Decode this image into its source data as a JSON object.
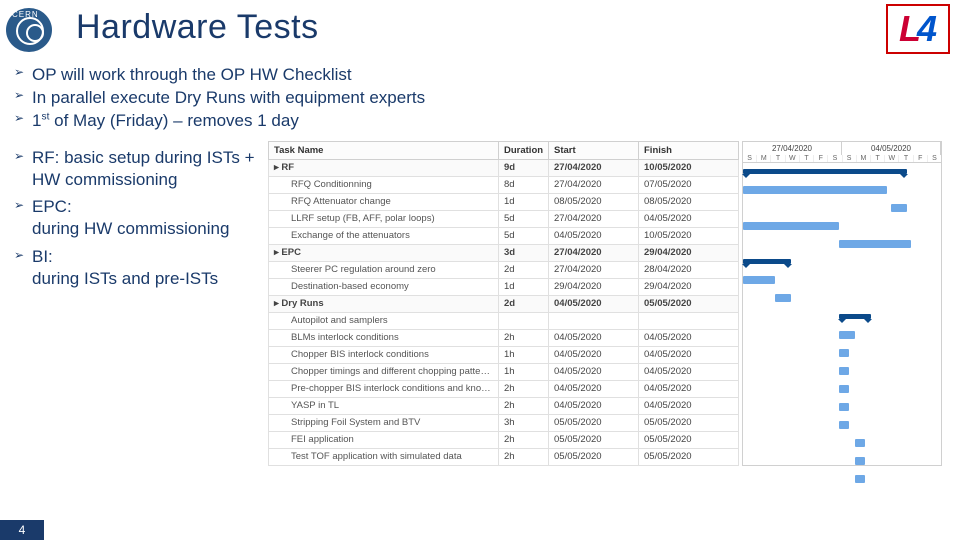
{
  "header": {
    "title": "Hardware Tests",
    "cern_label": "CERN",
    "logo_L": "L",
    "logo_4": "4"
  },
  "top_bullets": [
    "OP will work through the OP HW Checklist",
    "In parallel execute Dry Runs with equipment experts",
    "1st of May (Friday) – removes 1 day"
  ],
  "left_bullets": [
    "RF: basic setup during ISTs + HW commissioning",
    "EPC: \nduring HW commissioning",
    "BI: \nduring ISTs and pre-ISTs"
  ],
  "table": {
    "columns": [
      "Task Name",
      "Duration",
      "Start",
      "Finish"
    ],
    "rows": [
      {
        "level": "sum",
        "name": "RF",
        "dur": "9d",
        "start": "27/04/2020",
        "finish": "10/05/2020",
        "bar": [
          0,
          82
        ]
      },
      {
        "level": "sub",
        "name": "RFQ Conditionning",
        "dur": "8d",
        "start": "27/04/2020",
        "finish": "07/05/2020",
        "bar": [
          0,
          72
        ]
      },
      {
        "level": "sub",
        "name": "RFQ Attenuator change",
        "dur": "1d",
        "start": "08/05/2020",
        "finish": "08/05/2020",
        "bar": [
          74,
          8
        ]
      },
      {
        "level": "sub",
        "name": "LLRF setup (FB, AFF, polar loops)",
        "dur": "5d",
        "start": "27/04/2020",
        "finish": "04/05/2020",
        "bar": [
          0,
          48
        ]
      },
      {
        "level": "sub",
        "name": "Exchange of the attenuators",
        "dur": "5d",
        "start": "04/05/2020",
        "finish": "10/05/2020",
        "bar": [
          48,
          36
        ]
      },
      {
        "level": "sum",
        "name": "EPC",
        "dur": "3d",
        "start": "27/04/2020",
        "finish": "29/04/2020",
        "bar": [
          0,
          24
        ]
      },
      {
        "level": "sub",
        "name": "Steerer PC regulation around zero",
        "dur": "2d",
        "start": "27/04/2020",
        "finish": "28/04/2020",
        "bar": [
          0,
          16
        ]
      },
      {
        "level": "sub",
        "name": "Destination-based economy",
        "dur": "1d",
        "start": "29/04/2020",
        "finish": "29/04/2020",
        "bar": [
          16,
          8
        ]
      },
      {
        "level": "sum",
        "name": "Dry Runs",
        "dur": "2d",
        "start": "04/05/2020",
        "finish": "05/05/2020",
        "bar": [
          48,
          16
        ]
      },
      {
        "level": "sub",
        "name": "Autopilot and samplers",
        "dur": "",
        "start": "",
        "finish": "",
        "bar": [
          48,
          8
        ]
      },
      {
        "level": "sub",
        "name": "BLMs interlock conditions",
        "dur": "2h",
        "start": "04/05/2020",
        "finish": "04/05/2020",
        "bar": [
          48,
          5
        ]
      },
      {
        "level": "sub",
        "name": "Chopper BIS interlock conditions",
        "dur": "1h",
        "start": "04/05/2020",
        "finish": "04/05/2020",
        "bar": [
          48,
          5
        ]
      },
      {
        "level": "sub",
        "name": "Chopper timings and different chopping patterns",
        "dur": "1h",
        "start": "04/05/2020",
        "finish": "04/05/2020",
        "bar": [
          48,
          5
        ]
      },
      {
        "level": "sub",
        "name": "Pre-chopper BIS interlock conditions and knob into",
        "dur": "2h",
        "start": "04/05/2020",
        "finish": "04/05/2020",
        "bar": [
          48,
          5
        ]
      },
      {
        "level": "sub",
        "name": "YASP in TL",
        "dur": "2h",
        "start": "04/05/2020",
        "finish": "04/05/2020",
        "bar": [
          48,
          5
        ]
      },
      {
        "level": "sub",
        "name": "Stripping Foil System and BTV",
        "dur": "3h",
        "start": "05/05/2020",
        "finish": "05/05/2020",
        "bar": [
          56,
          5
        ]
      },
      {
        "level": "sub",
        "name": "FEI application",
        "dur": "2h",
        "start": "05/05/2020",
        "finish": "05/05/2020",
        "bar": [
          56,
          5
        ]
      },
      {
        "level": "sub",
        "name": "Test TOF application with simulated data",
        "dur": "2h",
        "start": "05/05/2020",
        "finish": "05/05/2020",
        "bar": [
          56,
          5
        ]
      }
    ]
  },
  "gantt": {
    "weeks": [
      "27/04/2020",
      "04/05/2020"
    ],
    "days": [
      "S",
      "M",
      "T",
      "W",
      "T",
      "F",
      "S",
      "S",
      "M",
      "T",
      "W",
      "T",
      "F",
      "S"
    ],
    "colors": {
      "summary": "#0b4a8a",
      "task": "#6ea8e6",
      "grid": "#e0e0e0"
    }
  },
  "footer": {
    "page_number": "4"
  }
}
